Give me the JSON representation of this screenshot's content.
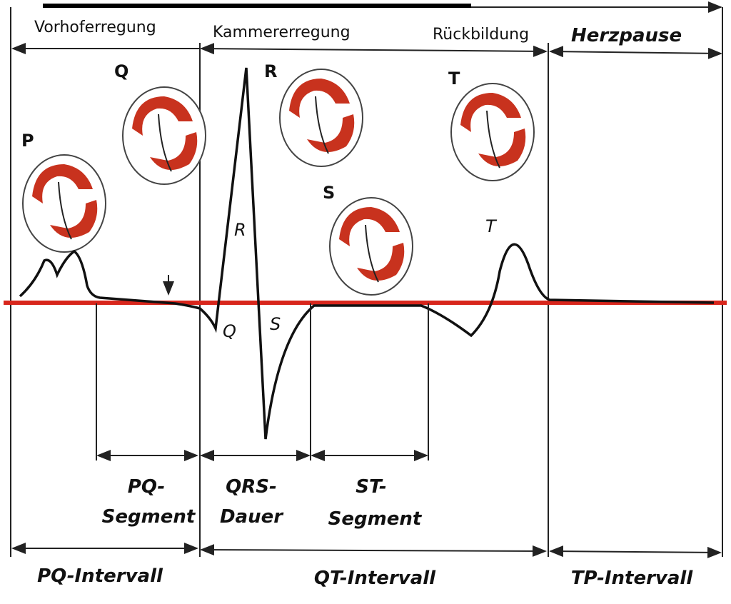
{
  "phases": [
    "Vorhoferregung",
    "Kammererregung",
    "Rückbildung",
    "Herzpause"
  ],
  "hearts": [
    {
      "label": "P"
    },
    {
      "label": "Q"
    },
    {
      "label": "R"
    },
    {
      "label": "S"
    },
    {
      "label": "T"
    }
  ],
  "waves": [
    "R",
    "Q",
    "S",
    "T"
  ],
  "segments": [
    [
      "PQ-",
      "Segment"
    ],
    [
      "QRS-",
      "Dauer"
    ],
    [
      "ST-",
      "Segment"
    ]
  ],
  "intervals": [
    "PQ-Intervall",
    "QT-Intervall",
    "TP-Intervall"
  ]
}
